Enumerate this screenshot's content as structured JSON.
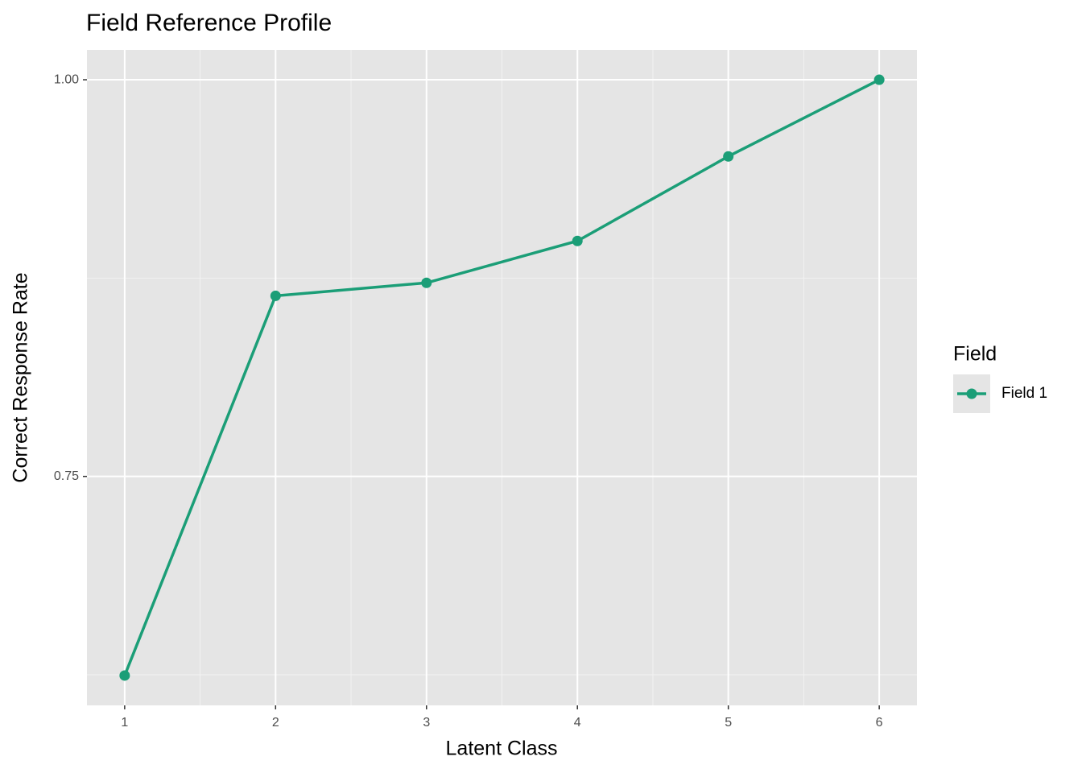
{
  "chart_data": {
    "type": "line",
    "title": "Field Reference Profile",
    "x_label": "Latent Class",
    "y_label": "Correct Response Rate",
    "x": [
      1,
      2,
      3,
      4,
      5,
      6
    ],
    "series": [
      {
        "name": "Field 1",
        "color": "#1b9e77",
        "values": [
          0.6245,
          0.8638,
          0.872,
          0.8984,
          0.9517,
          1.0
        ]
      }
    ],
    "xlim": [
      0.75,
      6.25
    ],
    "xticks": [
      1,
      2,
      3,
      4,
      5,
      6
    ],
    "ylim": [
      0.6057,
      1.0188
    ],
    "yticks": [
      0.75,
      {
        "value": 1,
        "label": "1.00"
      }
    ],
    "legend_title": "Field",
    "legend_position": "right",
    "grid": true
  }
}
